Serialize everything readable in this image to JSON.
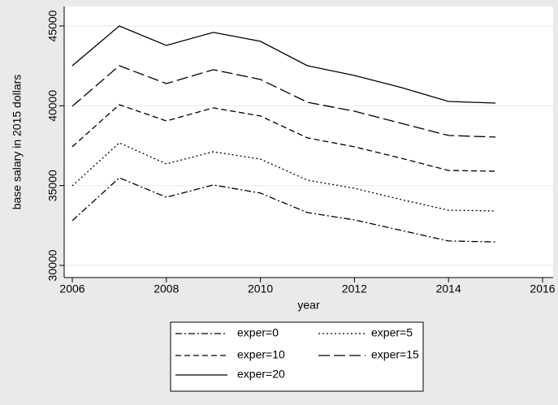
{
  "chart_data": {
    "type": "line",
    "x_label": "year",
    "y_label": "base salary in 2015 dollars",
    "x": [
      2006,
      2007,
      2008,
      2009,
      2010,
      2011,
      2012,
      2013,
      2014,
      2015
    ],
    "series": [
      {
        "name": "exper=0",
        "color": "#000000",
        "dash": "8 3 2 3",
        "values": [
          32800,
          35490,
          34270,
          35040,
          34530,
          33310,
          32850,
          32190,
          31530,
          31470
        ]
      },
      {
        "name": "exper=5",
        "color": "#000000",
        "dash": "2 3",
        "values": [
          34980,
          37680,
          36360,
          37120,
          36660,
          35340,
          34830,
          34120,
          33460,
          33410
        ]
      },
      {
        "name": "exper=10",
        "color": "#000000",
        "dash": "7 4",
        "values": [
          37430,
          40070,
          39050,
          39870,
          39360,
          37990,
          37430,
          36710,
          35950,
          35900
        ]
      },
      {
        "name": "exper=15",
        "color": "#000000",
        "dash": "14 5",
        "values": [
          39970,
          42510,
          41390,
          42260,
          41650,
          40220,
          39660,
          38900,
          38140,
          38040
        ]
      },
      {
        "name": "exper=20",
        "color": "#000000",
        "dash": "none",
        "values": [
          42510,
          45000,
          43780,
          44600,
          44040,
          42510,
          41900,
          41140,
          40270,
          40170
        ]
      }
    ],
    "xlim": [
      2006,
      2016
    ],
    "xticks": [
      2006,
      2008,
      2010,
      2012,
      2014,
      2016
    ],
    "ylim": [
      30000,
      45000
    ],
    "yticks": [
      30000,
      35000,
      40000,
      45000
    ],
    "grid": true,
    "legend_position": "bottom"
  }
}
